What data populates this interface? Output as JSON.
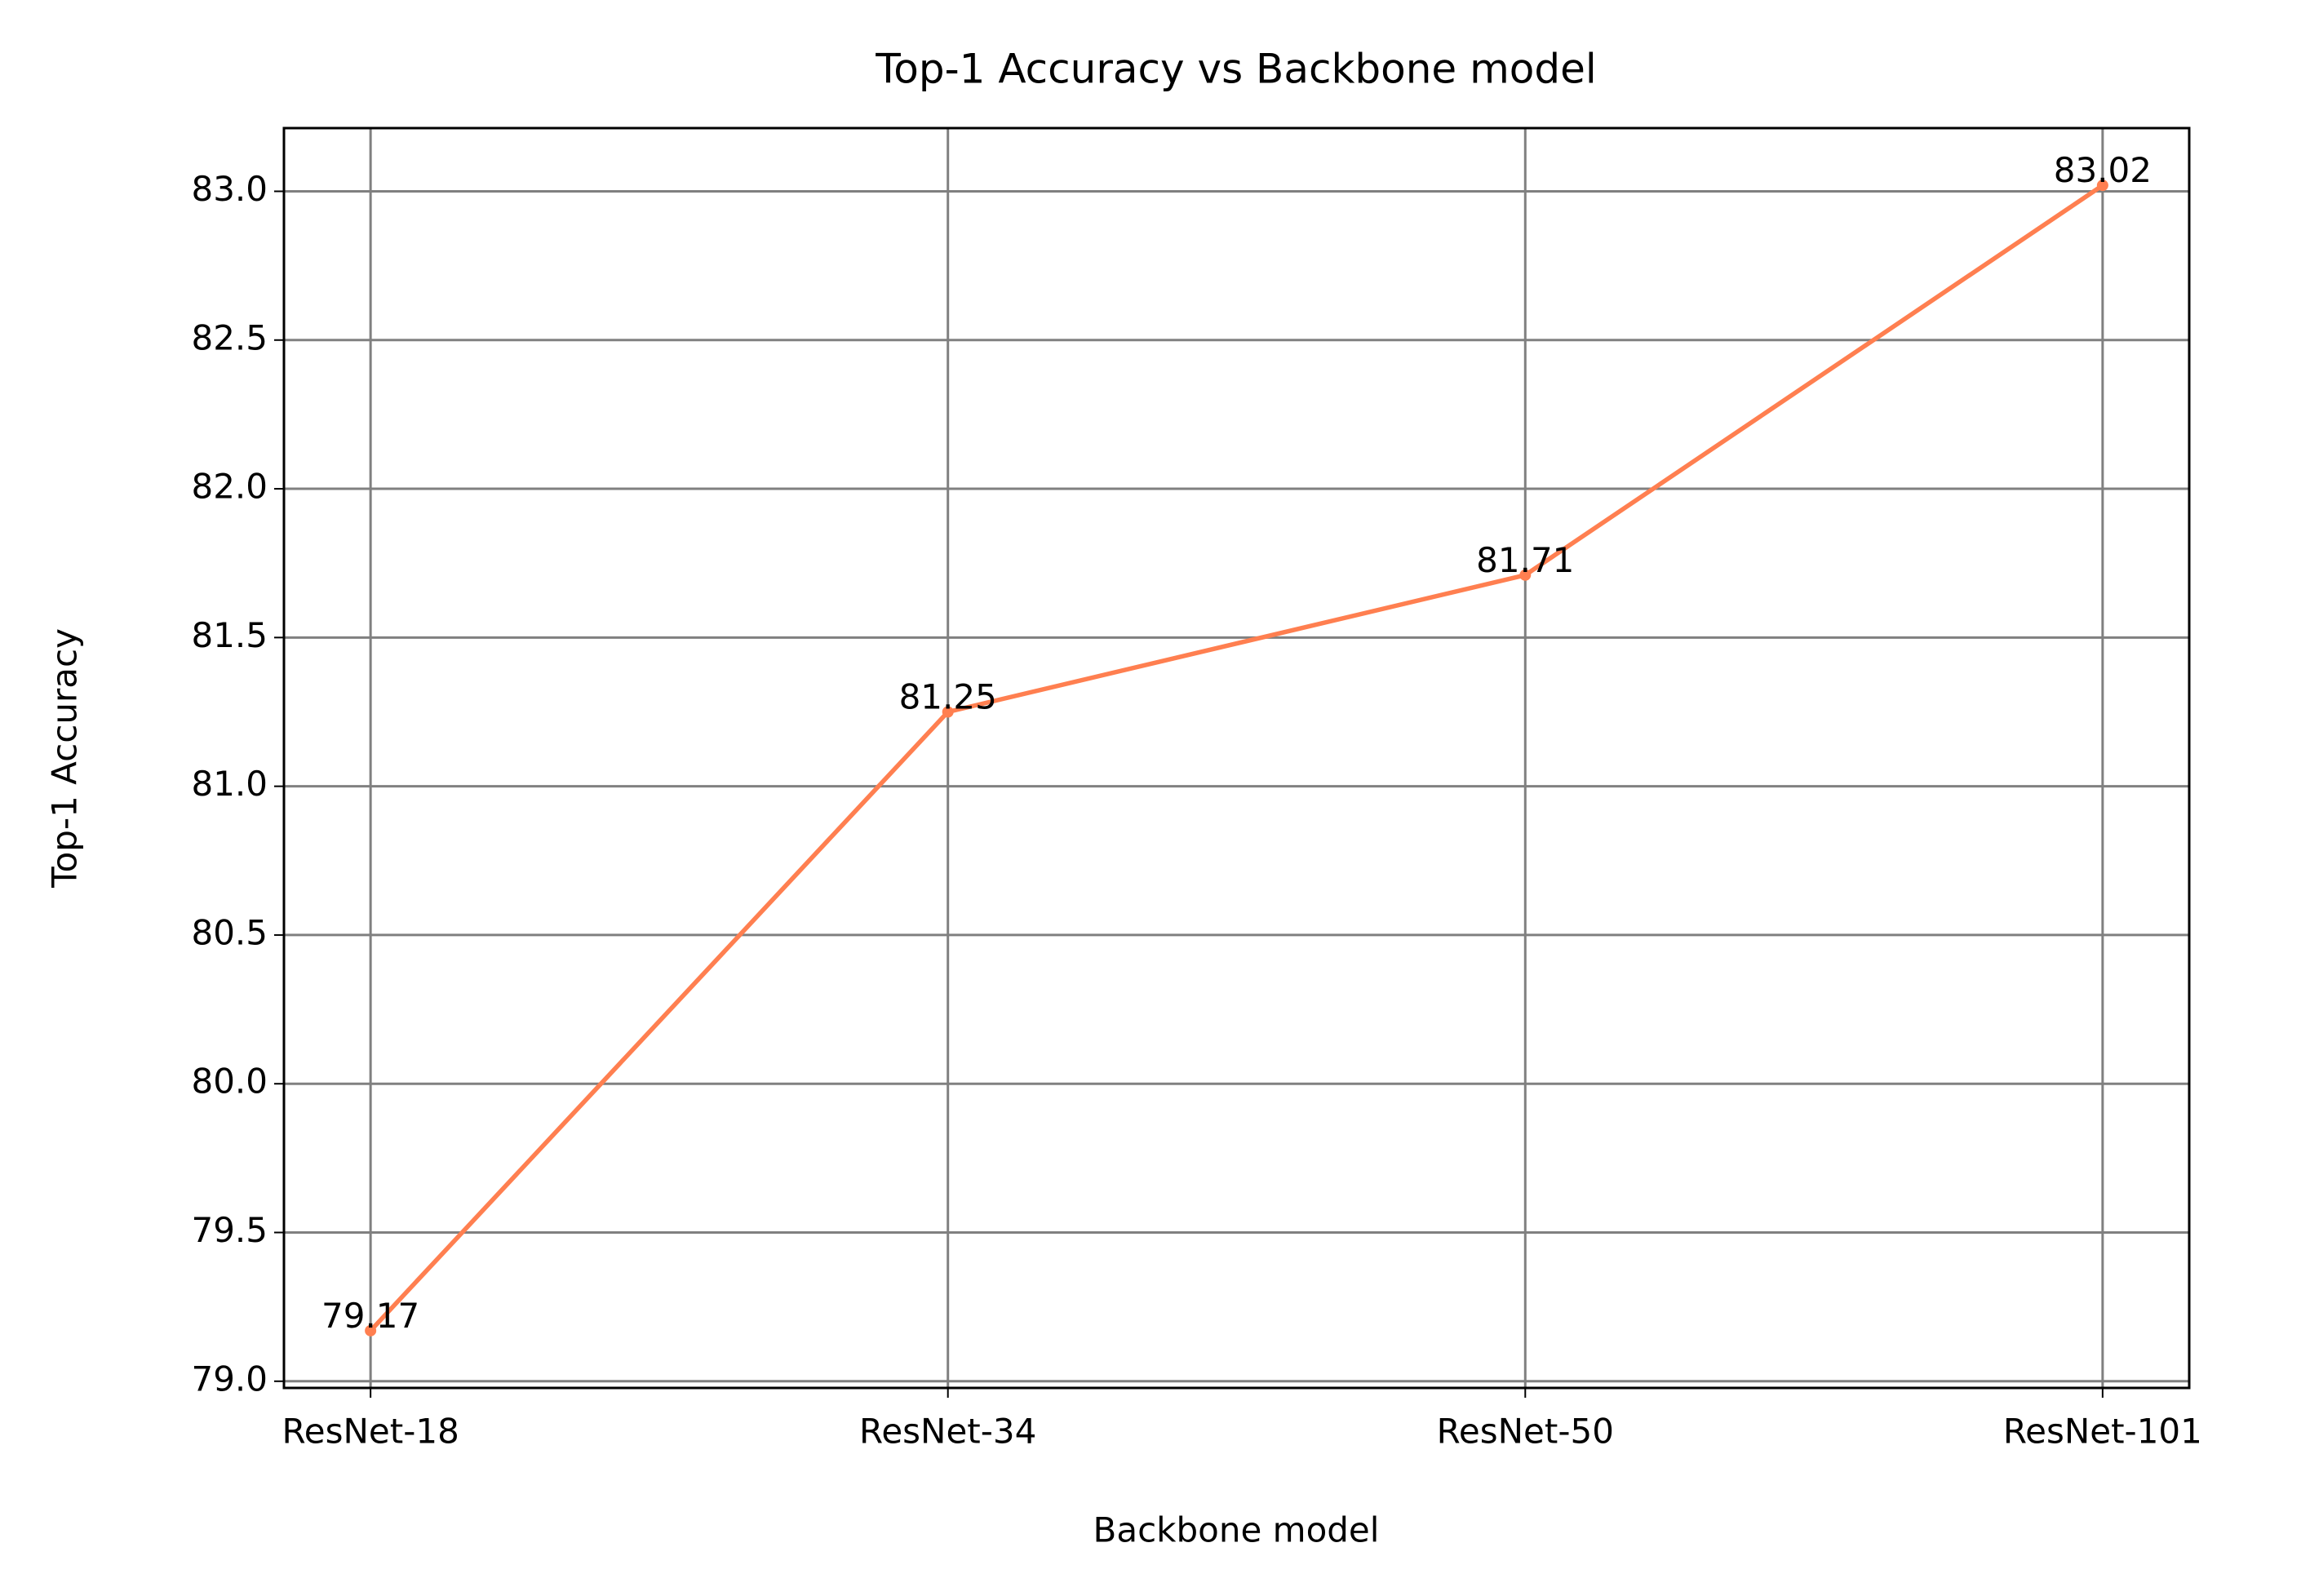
{
  "chart_data": {
    "type": "line",
    "title": "Top-1 Accuracy vs Backbone model",
    "x_label": "Backbone model",
    "y_label": "Top-1 Accuracy",
    "categories": [
      "ResNet-18",
      "ResNet-34",
      "ResNet-50",
      "ResNet-101"
    ],
    "series": [
      {
        "name": "Top-1 Accuracy",
        "color": "#ff7f50",
        "values": [
          79.17,
          81.25,
          81.71,
          83.02
        ]
      }
    ],
    "ylim": [
      78.9775,
      83.2125
    ],
    "yticks": [
      {
        "value": 79,
        "label": "79.0"
      },
      79.5,
      {
        "value": 80,
        "label": "80.0"
      },
      80.5,
      {
        "value": 81,
        "label": "81.0"
      },
      81.5,
      {
        "value": 82,
        "label": "82.0"
      },
      82.5,
      {
        "value": 83,
        "label": "83.0"
      }
    ],
    "grid": true,
    "grid_color": "#808080",
    "data_labels": true
  }
}
